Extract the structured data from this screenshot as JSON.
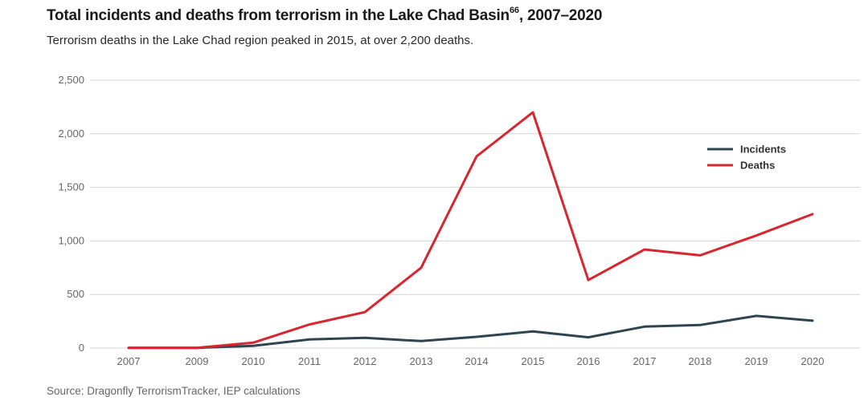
{
  "title": {
    "main": "Total incidents and deaths from terrorism in the Lake Chad Basin",
    "sup": "66",
    "suffix": ", 2007–2020"
  },
  "subtitle": "Terrorism deaths in the Lake Chad region peaked in 2015, at over 2,200 deaths.",
  "source": "Source: Dragonfly TerrorismTracker, IEP calculations",
  "colors": {
    "incidents": "#2e4551",
    "deaths": "#d9262e",
    "grid": "#d4d4d4"
  },
  "chart_data": {
    "type": "line",
    "title": "Total incidents and deaths from terrorism in the Lake Chad Basin, 2007–2020",
    "subtitle": "Terrorism deaths in the Lake Chad region peaked in 2015, at over 2,200 deaths.",
    "xlabel": "",
    "ylabel": "",
    "x": [
      "2007",
      "2009",
      "2010",
      "2011",
      "2012",
      "2013",
      "2014",
      "2015",
      "2016",
      "2017",
      "2018",
      "2019",
      "2020"
    ],
    "x_tick_labels": [
      "2007",
      "2009",
      "2010",
      "2011",
      "2012",
      "2013",
      "2014",
      "2015",
      "2016",
      "2017",
      "2018",
      "2019",
      "2020"
    ],
    "y_ticks": [
      0,
      500,
      1000,
      1500,
      2000,
      2500
    ],
    "y_tick_labels": [
      "0",
      "500",
      "1,000",
      "1,500",
      "2,000",
      "2,500"
    ],
    "ylim": [
      0,
      2500
    ],
    "grid": true,
    "legend_position": "top-right",
    "series": [
      {
        "name": "Incidents",
        "color": "#2e4551",
        "values": [
          2,
          2,
          20,
          80,
          95,
          65,
          105,
          155,
          100,
          200,
          215,
          300,
          255
        ]
      },
      {
        "name": "Deaths",
        "color": "#d9262e",
        "values": [
          2,
          2,
          50,
          220,
          335,
          750,
          1790,
          2200,
          635,
          920,
          865,
          1050,
          1250
        ]
      }
    ]
  }
}
